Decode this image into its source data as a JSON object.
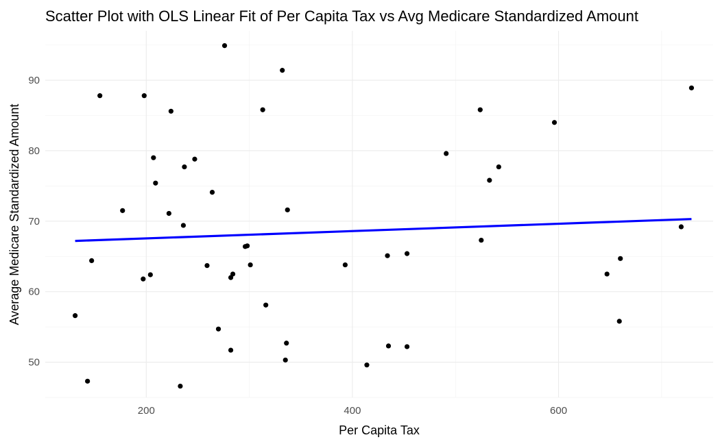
{
  "chart_data": {
    "type": "scatter",
    "title": "Scatter Plot with OLS Linear Fit of Per Capita Tax vs Avg Medicare Standardized Amount",
    "xlabel": "Per Capita Tax",
    "ylabel": "Average Medicare Standardized Amount",
    "xlim": [
      102,
      750
    ],
    "ylim": [
      45,
      97
    ],
    "x_ticks": [
      200,
      400,
      600
    ],
    "y_ticks": [
      50,
      60,
      70,
      80,
      90
    ],
    "grid": true,
    "series": [
      {
        "points": [
          {
            "x": 131,
            "y": 56.6
          },
          {
            "x": 143,
            "y": 47.3
          },
          {
            "x": 147,
            "y": 64.4
          },
          {
            "x": 155,
            "y": 87.8
          },
          {
            "x": 177,
            "y": 71.5
          },
          {
            "x": 197,
            "y": 61.8
          },
          {
            "x": 198,
            "y": 87.8
          },
          {
            "x": 204,
            "y": 62.4
          },
          {
            "x": 207,
            "y": 79.0
          },
          {
            "x": 209,
            "y": 75.4
          },
          {
            "x": 222,
            "y": 71.1
          },
          {
            "x": 224,
            "y": 85.6
          },
          {
            "x": 233,
            "y": 46.6
          },
          {
            "x": 236,
            "y": 69.4
          },
          {
            "x": 237,
            "y": 77.7
          },
          {
            "x": 247,
            "y": 78.8
          },
          {
            "x": 259,
            "y": 63.7
          },
          {
            "x": 264,
            "y": 74.1
          },
          {
            "x": 270,
            "y": 54.7
          },
          {
            "x": 276,
            "y": 94.9
          },
          {
            "x": 282,
            "y": 51.7
          },
          {
            "x": 282,
            "y": 62.0
          },
          {
            "x": 284,
            "y": 62.5
          },
          {
            "x": 296,
            "y": 66.4
          },
          {
            "x": 298,
            "y": 66.5
          },
          {
            "x": 301,
            "y": 63.8
          },
          {
            "x": 313,
            "y": 85.8
          },
          {
            "x": 316,
            "y": 58.1
          },
          {
            "x": 332,
            "y": 91.4
          },
          {
            "x": 335,
            "y": 50.3
          },
          {
            "x": 336,
            "y": 52.7
          },
          {
            "x": 337,
            "y": 71.6
          },
          {
            "x": 393,
            "y": 63.8
          },
          {
            "x": 414,
            "y": 49.6
          },
          {
            "x": 434,
            "y": 65.1
          },
          {
            "x": 435,
            "y": 52.3
          },
          {
            "x": 453,
            "y": 65.4
          },
          {
            "x": 453,
            "y": 52.2
          },
          {
            "x": 491,
            "y": 79.6
          },
          {
            "x": 524,
            "y": 85.8
          },
          {
            "x": 525,
            "y": 67.3
          },
          {
            "x": 533,
            "y": 75.8
          },
          {
            "x": 542,
            "y": 77.7
          },
          {
            "x": 596,
            "y": 84.0
          },
          {
            "x": 647,
            "y": 62.5
          },
          {
            "x": 659,
            "y": 55.8
          },
          {
            "x": 660,
            "y": 64.7
          },
          {
            "x": 719,
            "y": 69.2
          },
          {
            "x": 729,
            "y": 88.9
          }
        ]
      }
    ],
    "fit_line": {
      "method": "OLS",
      "x": [
        131,
        729
      ],
      "y": [
        67.2,
        70.3
      ]
    }
  }
}
